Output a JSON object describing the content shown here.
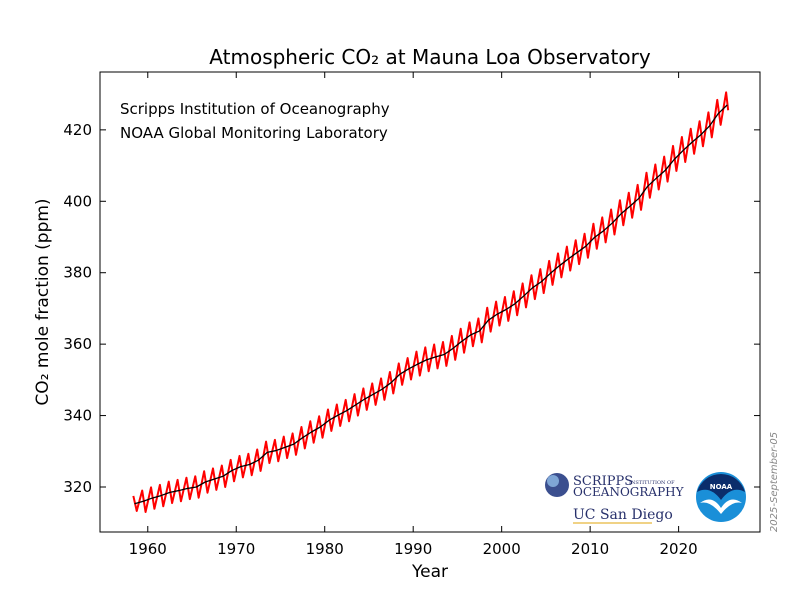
{
  "chart_data": {
    "type": "line",
    "title": "Atmospheric CO₂ at Mauna Loa Observatory",
    "x_label": "Year",
    "y_label": "CO₂ mole fraction (ppm)",
    "annotations": [
      "Scripps Institution of Oceanography",
      "NOAA Global Monitoring Laboratory"
    ],
    "date_stamp": "2025-September-05",
    "logos": [
      "SCRIPPS",
      "INSTITUTION OF",
      "OCEANOGRAPHY",
      "UC San Diego",
      "NOAA"
    ],
    "xlim": [
      1954.6,
      2029.2
    ],
    "ylim": [
      307.4,
      436.2
    ],
    "xticks": [
      1960,
      1970,
      1980,
      1990,
      2000,
      2010,
      2020
    ],
    "yticks": [
      320,
      340,
      360,
      380,
      400,
      420
    ],
    "series": [
      {
        "color": "#ff0000",
        "x": [
          1958.37,
          1958.75,
          1959.37,
          1959.75,
          1960.37,
          1960.75,
          1961.37,
          1961.75,
          1962.37,
          1962.75,
          1963.37,
          1963.75,
          1964.37,
          1964.75,
          1965.37,
          1965.75,
          1966.37,
          1966.75,
          1967.37,
          1967.75,
          1968.37,
          1968.75,
          1969.37,
          1969.75,
          1970.37,
          1970.75,
          1971.37,
          1971.75,
          1972.37,
          1972.75,
          1973.37,
          1973.75,
          1974.37,
          1974.75,
          1975.37,
          1975.75,
          1976.37,
          1976.75,
          1977.37,
          1977.75,
          1978.37,
          1978.75,
          1979.37,
          1979.75,
          1980.37,
          1980.75,
          1981.37,
          1981.75,
          1982.37,
          1982.75,
          1983.37,
          1983.75,
          1984.37,
          1984.75,
          1985.37,
          1985.75,
          1986.37,
          1986.75,
          1987.37,
          1987.75,
          1988.37,
          1988.75,
          1989.37,
          1989.75,
          1990.37,
          1990.75,
          1991.37,
          1991.75,
          1992.37,
          1992.75,
          1993.37,
          1993.75,
          1994.37,
          1994.75,
          1995.37,
          1995.75,
          1996.37,
          1996.75,
          1997.37,
          1997.75,
          1998.37,
          1998.75,
          1999.37,
          1999.75,
          2000.37,
          2000.75,
          2001.37,
          2001.75,
          2002.37,
          2002.75,
          2003.37,
          2003.75,
          2004.37,
          2004.75,
          2005.37,
          2005.75,
          2006.37,
          2006.75,
          2007.37,
          2007.75,
          2008.37,
          2008.75,
          2009.37,
          2009.75,
          2010.37,
          2010.75,
          2011.37,
          2011.75,
          2012.37,
          2012.75,
          2013.37,
          2013.75,
          2014.37,
          2014.75,
          2015.37,
          2015.75,
          2016.37,
          2016.75,
          2017.37,
          2017.75,
          2018.37,
          2018.75,
          2019.37,
          2019.75,
          2020.37,
          2020.75,
          2021.37,
          2021.75,
          2022.37,
          2022.75,
          2023.37,
          2023.75,
          2024.37,
          2024.75,
          2025.37,
          2025.6
        ],
        "values": [
          317.5,
          313.3,
          319.0,
          313.0,
          319.9,
          313.9,
          320.6,
          314.6,
          321.5,
          315.5,
          322.0,
          316.0,
          322.6,
          316.6,
          323.0,
          317.0,
          324.4,
          318.4,
          325.2,
          319.2,
          326.0,
          320.0,
          327.6,
          321.6,
          328.7,
          322.7,
          329.3,
          323.3,
          330.5,
          324.5,
          332.7,
          326.7,
          333.2,
          327.2,
          334.1,
          328.1,
          335.0,
          329.0,
          336.8,
          330.8,
          338.4,
          332.4,
          339.8,
          333.8,
          341.7,
          335.7,
          343.1,
          337.1,
          344.4,
          338.4,
          346.0,
          340.0,
          347.6,
          341.6,
          349.0,
          343.0,
          350.4,
          344.4,
          352.2,
          346.2,
          354.6,
          348.6,
          356.1,
          350.1,
          357.9,
          351.2,
          359.1,
          352.4,
          359.9,
          353.2,
          360.6,
          353.9,
          362.3,
          355.6,
          364.3,
          357.6,
          366.1,
          359.4,
          367.2,
          360.5,
          370.2,
          363.5,
          371.9,
          365.2,
          373.2,
          366.5,
          374.8,
          368.1,
          377.0,
          370.3,
          379.3,
          372.6,
          381.0,
          374.3,
          383.3,
          376.6,
          385.4,
          378.7,
          387.3,
          380.6,
          389.1,
          382.4,
          390.9,
          384.2,
          393.7,
          386.7,
          395.5,
          388.5,
          397.7,
          390.7,
          400.3,
          393.3,
          402.4,
          395.4,
          404.6,
          397.6,
          408.0,
          401.0,
          410.3,
          403.3,
          412.5,
          405.5,
          415.5,
          408.5,
          418.0,
          411.0,
          420.3,
          413.3,
          422.4,
          415.4,
          424.9,
          417.9,
          428.4,
          421.4,
          430.5,
          425.5
        ]
      },
      {
        "color": "#000000",
        "x": [
          1958.5,
          1959.5,
          1960.5,
          1961.5,
          1962.5,
          1963.5,
          1964.5,
          1965.5,
          1966.5,
          1967.5,
          1968.5,
          1969.5,
          1970.5,
          1971.5,
          1972.5,
          1973.5,
          1974.5,
          1975.5,
          1976.5,
          1977.5,
          1978.5,
          1979.5,
          1980.5,
          1981.5,
          1982.5,
          1983.5,
          1984.5,
          1985.5,
          1986.5,
          1987.5,
          1988.5,
          1989.5,
          1990.5,
          1991.5,
          1992.5,
          1993.5,
          1994.5,
          1995.5,
          1996.5,
          1997.5,
          1998.5,
          1999.5,
          2000.5,
          2001.5,
          2002.5,
          2003.5,
          2004.5,
          2005.5,
          2006.5,
          2007.5,
          2008.5,
          2009.5,
          2010.5,
          2011.5,
          2012.5,
          2013.5,
          2014.5,
          2015.5,
          2016.5,
          2017.5,
          2018.5,
          2019.5,
          2020.5,
          2021.5,
          2022.5,
          2023.5,
          2024.5,
          2025.5
        ],
        "values": [
          315.3,
          316.0,
          316.9,
          317.6,
          318.5,
          319.0,
          319.6,
          320.0,
          321.4,
          322.2,
          323.0,
          324.6,
          325.7,
          326.3,
          327.5,
          329.7,
          330.2,
          331.1,
          332.0,
          333.8,
          335.4,
          336.8,
          338.7,
          340.1,
          341.4,
          343.0,
          344.6,
          346.0,
          347.4,
          349.2,
          351.6,
          353.1,
          354.4,
          355.6,
          356.4,
          357.1,
          358.8,
          360.8,
          362.6,
          363.7,
          366.7,
          368.4,
          369.7,
          371.3,
          373.5,
          375.8,
          377.5,
          379.8,
          381.9,
          383.8,
          385.6,
          387.4,
          389.9,
          391.7,
          393.9,
          396.5,
          398.6,
          400.8,
          404.2,
          406.5,
          408.7,
          411.7,
          414.2,
          416.5,
          418.6,
          421.1,
          424.6,
          427.0
        ]
      }
    ]
  }
}
